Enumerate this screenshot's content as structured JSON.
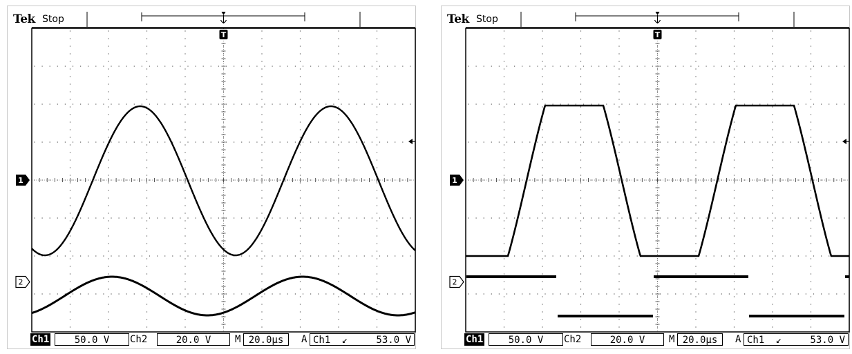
{
  "scopes": [
    {
      "brand": "Tek",
      "acq_state": "Stop",
      "ch1_label": "Ch1",
      "ch1_scale": "50.0 V",
      "ch2_label": "Ch2",
      "ch2_scale": "20.0 V",
      "time_label": "M",
      "time_scale": "20.0µs",
      "trig_label": "A",
      "trig_source": "Ch1",
      "trig_slope_glyph": "↙",
      "trig_level": "53.0 V",
      "ch1_marker": "1",
      "ch2_marker": "2",
      "trigger_marker": "T"
    },
    {
      "brand": "Tek",
      "acq_state": "Stop",
      "ch1_label": "Ch1",
      "ch1_scale": "50.0 V",
      "ch2_label": "Ch2",
      "ch2_scale": "20.0 V",
      "time_label": "M",
      "time_scale": "20.0µs",
      "trig_label": "A",
      "trig_source": "Ch1",
      "trig_slope_glyph": "↙",
      "trig_level": "53.0 V",
      "ch1_marker": "1",
      "ch2_marker": "2",
      "trigger_marker": "T"
    }
  ]
}
